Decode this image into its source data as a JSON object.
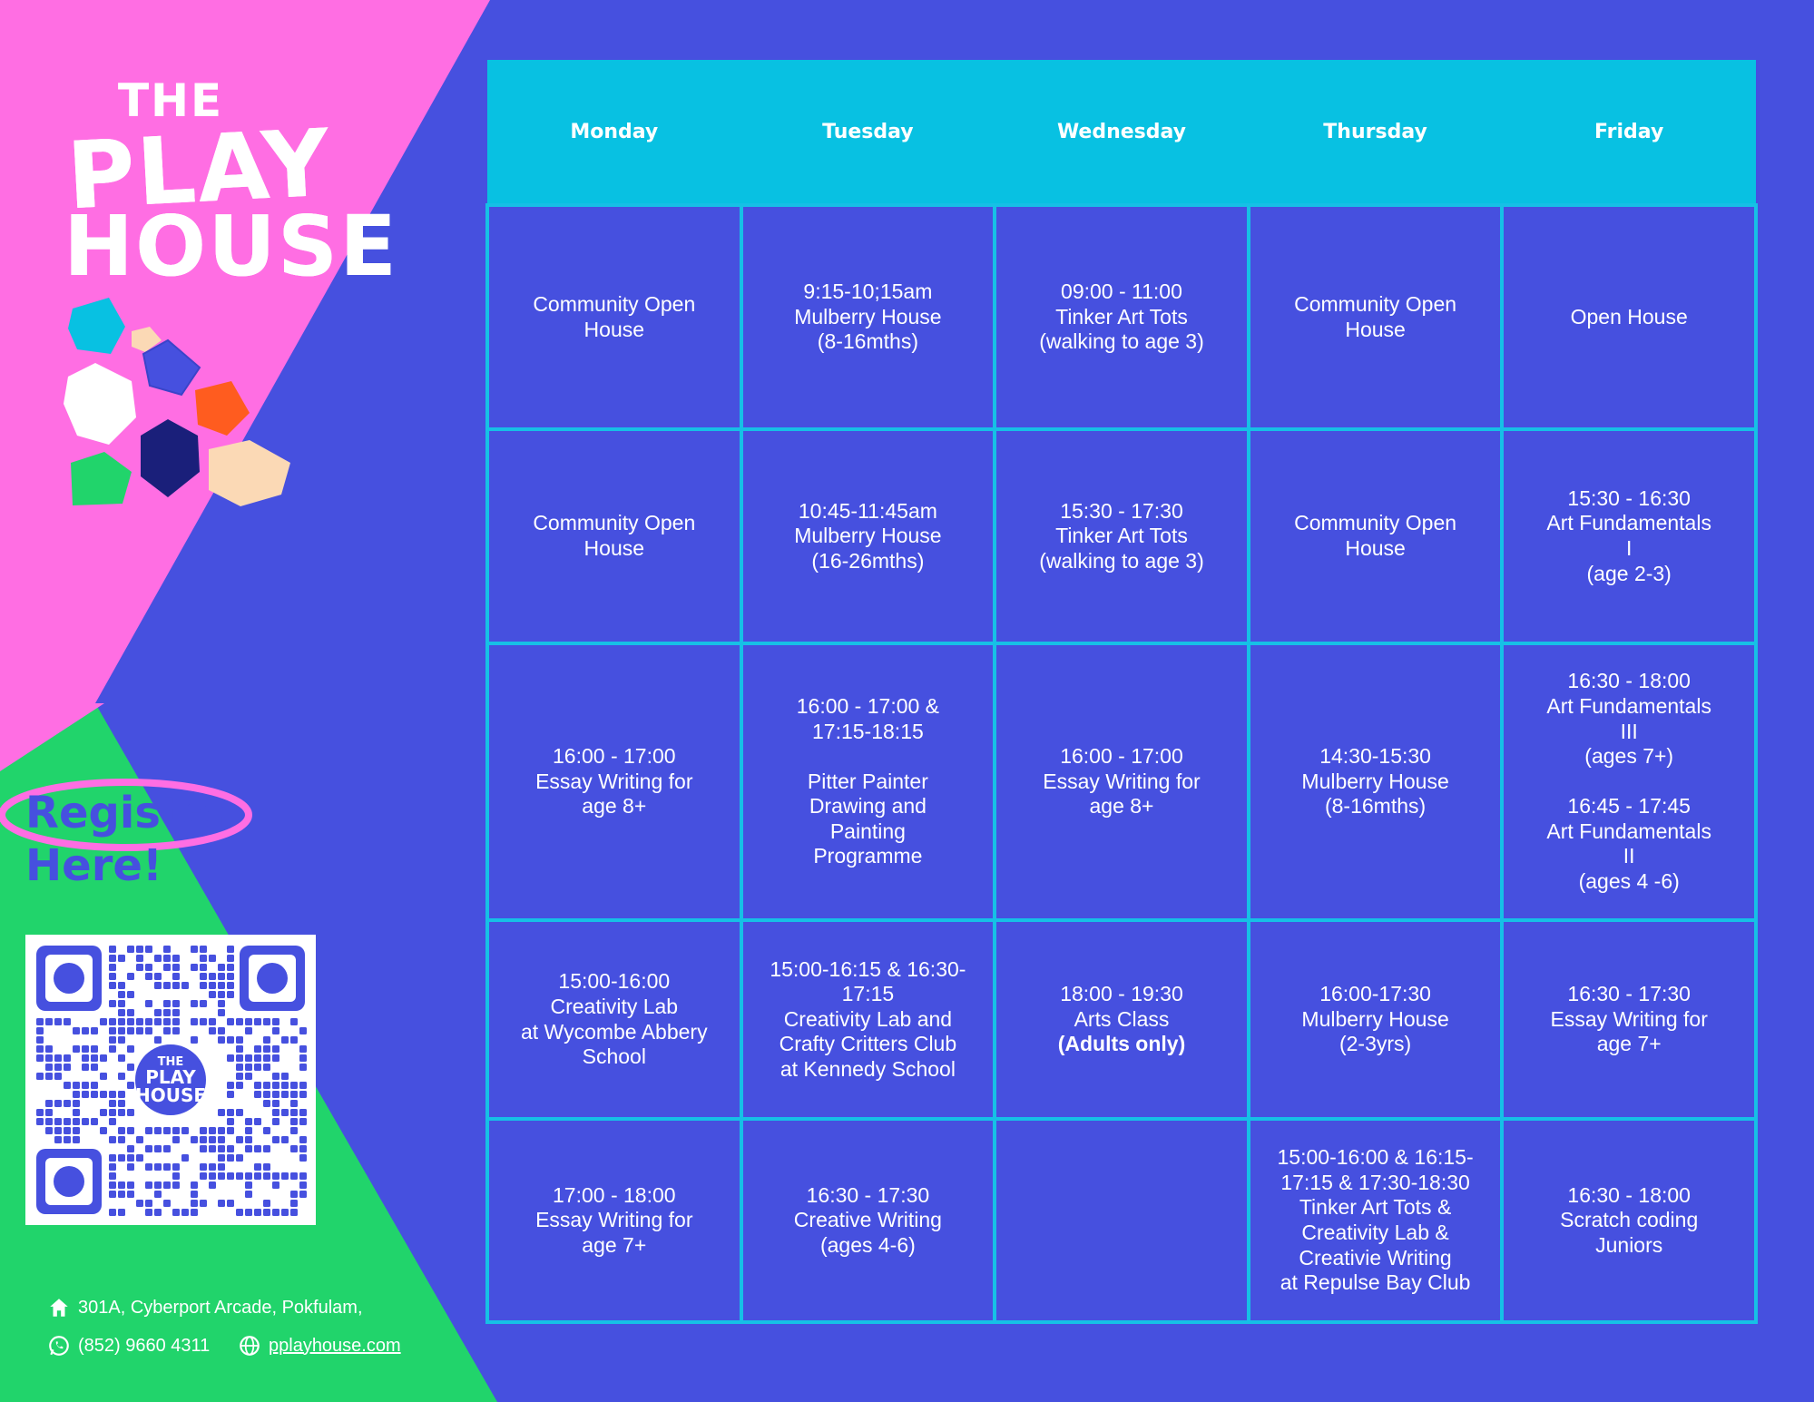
{
  "brand": {
    "logo_the": "THE",
    "logo_play": "PLAY",
    "logo_house": "HOUSE"
  },
  "register": {
    "line1": "Register",
    "line2": "Here!"
  },
  "qr": {
    "logo_the": "THE",
    "logo_play": "PLAY",
    "logo_house": "HOUSE"
  },
  "contact": {
    "address": "301A, Cyberport Arcade, Pokfulam,",
    "phone": "(852) 9660 4311",
    "website": "pplayhouse.com"
  },
  "colors": {
    "background": "#4650DF",
    "pink": "#FF6EE3",
    "green": "#21D46B",
    "header_cyan": "#08C1E2",
    "grid_line": "#16C0E6"
  },
  "schedule": {
    "days": [
      "Monday",
      "Tuesday",
      "Wednesday",
      "Thursday",
      "Friday"
    ],
    "rows": [
      [
        {
          "text": "Community Open\nHouse"
        },
        {
          "text": "9:15-10;15am\nMulberry House\n(8-16mths)"
        },
        {
          "text": "09:00 - 11:00\nTinker Art Tots\n(walking to age 3)"
        },
        {
          "text": "Community Open\nHouse"
        },
        {
          "text": "Open House"
        }
      ],
      [
        {
          "text": "Community Open\nHouse"
        },
        {
          "text": "10:45-11:45am\nMulberry House\n(16-26mths)"
        },
        {
          "text": "15:30 - 17:30\nTinker Art Tots\n(walking to age 3)"
        },
        {
          "text": "Community Open\nHouse"
        },
        {
          "text": "15:30 - 16:30\nArt Fundamentals\nI\n(age 2-3)"
        }
      ],
      [
        {
          "text": "16:00 - 17:00\nEssay Writing for\nage  8+"
        },
        {
          "text": "16:00 - 17:00 &\n17:15-18:15\n\nPitter Painter\nDrawing and\nPainting\nProgramme"
        },
        {
          "text": "16:00 - 17:00\nEssay Writing for\nage  8+"
        },
        {
          "text": "14:30-15:30\nMulberry House\n(8-16mths)"
        },
        {
          "text": "16:30 - 18:00\nArt Fundamentals\nIII\n(ages 7+)\n\n16:45 - 17:45\nArt Fundamentals\nII\n(ages 4 -6)"
        }
      ],
      [
        {
          "text": "15:00-16:00\nCreativity Lab\nat Wycombe Abbery\nSchool"
        },
        {
          "text": "15:00-16:15 & 16:30-\n17:15\nCreativity Lab and\nCrafty Critters Club\nat Kennedy School"
        },
        {
          "text": "18:00 - 19:30\nArts Class",
          "bold": "(Adults only)"
        },
        {
          "text": "16:00-17:30\nMulberry House\n(2-3yrs)"
        },
        {
          "text": "16:30 - 17:30\nEssay Writing for\nage 7+"
        }
      ],
      [
        {
          "text": "17:00 - 18:00\nEssay Writing for\nage 7+"
        },
        {
          "text": "16:30 - 17:30\nCreative Writing\n(ages 4-6)"
        },
        {
          "text": ""
        },
        {
          "text": "15:00-16:00 & 16:15-\n17:15 & 17:30-18:30\nTinker Art Tots &\nCreativity Lab &\nCreativie Writing\nat Repulse Bay Club"
        },
        {
          "text": "16:30 - 18:00\nScratch coding\nJuniors"
        }
      ]
    ]
  }
}
